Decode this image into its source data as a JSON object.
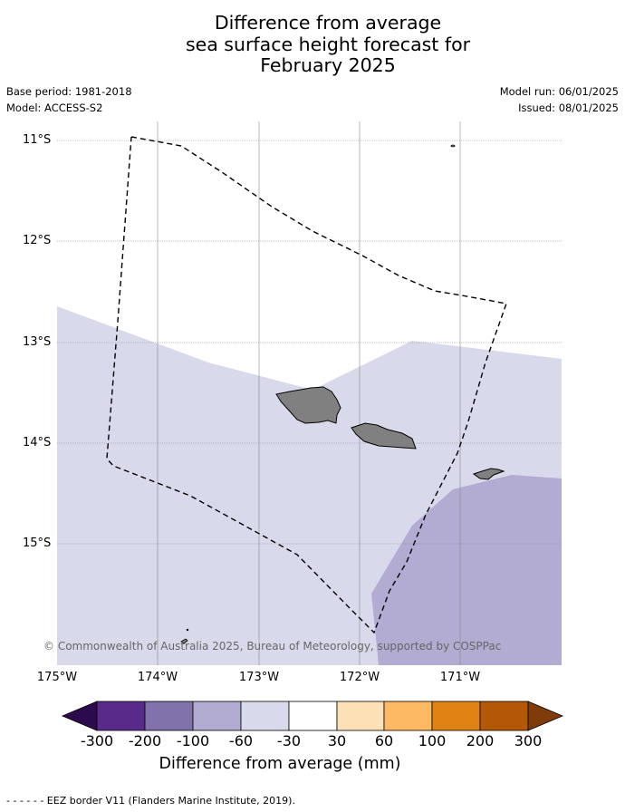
{
  "title": {
    "line1": "Difference from average",
    "line2": "sea surface height forecast for",
    "line3": "February 2025"
  },
  "meta": {
    "base_period": "Base period: 1981-2018",
    "model": "Model: ACCESS-S2",
    "model_run": "Model run: 06/01/2025",
    "issued": "Issued: 08/01/2025"
  },
  "axes": {
    "lat_labels": [
      "11°S",
      "12°S",
      "13°S",
      "14°S",
      "15°S"
    ],
    "lon_labels": [
      "175°W",
      "174°W",
      "173°W",
      "172°W",
      "171°W"
    ]
  },
  "credit": "© Commonwealth of Australia 2025, Bureau of Meteorology, supported by COSPPac",
  "colorbar": {
    "ticks": [
      "-300",
      "-200",
      "-100",
      "-60",
      "-30",
      "30",
      "60",
      "100",
      "200",
      "300"
    ],
    "colors": [
      "#2d0a4e",
      "#5a2a8a",
      "#8073ac",
      "#b2abd2",
      "#d8daeb",
      "#ffffff",
      "#fee0b6",
      "#fdb863",
      "#e08214",
      "#b35806",
      "#7f3b08"
    ],
    "title": "Difference from average (mm)"
  },
  "legend": {
    "eez_label": "- -  - -  - - EEZ border V11 (Flanders Marine Institute, 2019)."
  },
  "map_layers": {
    "band_light": "-30 to -60 mm",
    "band_mid": "-60 to -100 mm",
    "land": "Samoa",
    "land_color": "#808080"
  }
}
